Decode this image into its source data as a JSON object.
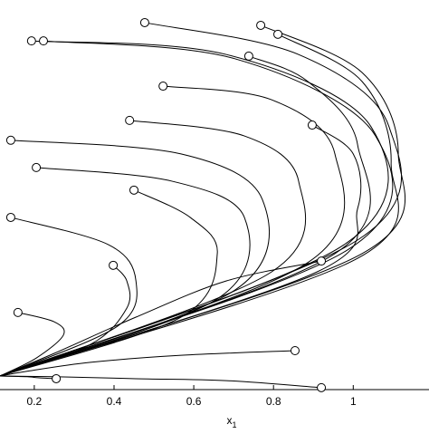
{
  "chart_data": {
    "type": "trajectories",
    "color": "#000000",
    "xlabel": {
      "text": "x",
      "subscript": "1"
    },
    "xlim": [
      0.114,
      1.19
    ],
    "ylim": [
      0,
      1
    ],
    "xticks": [
      0.2,
      0.4,
      0.6,
      0.8,
      1
    ],
    "series": [
      {
        "x": [
          0.193,
          0.682,
          1.045,
          0.977,
          0.114
        ],
        "y": [
          0.895,
          0.86,
          0.674,
          0.372,
          0.035
        ]
      },
      {
        "x": [
          0.223,
          0.704,
          1.056,
          0.988,
          0.114
        ],
        "y": [
          0.895,
          0.849,
          0.651,
          0.36,
          0.035
        ]
      },
      {
        "x": [
          0.477,
          0.863,
          1.09,
          1.011,
          0.114
        ],
        "y": [
          0.942,
          0.86,
          0.674,
          0.384,
          0.035
        ]
      },
      {
        "x": [
          0.768,
          1.022,
          1.113,
          1.022,
          0.114
        ],
        "y": [
          0.935,
          0.814,
          0.605,
          0.349,
          0.035
        ]
      },
      {
        "x": [
          0.811,
          1.022,
          1.095,
          1.011,
          0.114
        ],
        "y": [
          0.912,
          0.791,
          0.581,
          0.337,
          0.035
        ]
      },
      {
        "x": [
          0.738,
          0.886,
          1.011,
          0.954,
          0.114
        ],
        "y": [
          0.856,
          0.791,
          0.628,
          0.349,
          0.035
        ]
      },
      {
        "x": [
          0.523,
          0.795,
          0.954,
          0.886,
          0.114
        ],
        "y": [
          0.779,
          0.744,
          0.605,
          0.326,
          0.035
        ]
      },
      {
        "x": [
          0.439,
          0.727,
          0.863,
          0.795,
          0.114
        ],
        "y": [
          0.691,
          0.651,
          0.535,
          0.302,
          0.035
        ]
      },
      {
        "x": [
          0.141,
          0.568,
          0.772,
          0.704,
          0.114
        ],
        "y": [
          0.64,
          0.605,
          0.488,
          0.256,
          0.035
        ]
      },
      {
        "x": [
          0.205,
          0.545,
          0.727,
          0.659,
          0.114
        ],
        "y": [
          0.57,
          0.535,
          0.442,
          0.233,
          0.035
        ]
      },
      {
        "x": [
          0.45,
          0.591,
          0.659,
          0.568,
          0.114
        ],
        "y": [
          0.512,
          0.442,
          0.349,
          0.186,
          0.035
        ]
      },
      {
        "x": [
          0.141,
          0.386,
          0.455,
          0.409,
          0.114
        ],
        "y": [
          0.442,
          0.372,
          0.279,
          0.163,
          0.035
        ]
      },
      {
        "x": [
          0.398,
          0.432,
          0.432,
          0.341,
          0.114
        ],
        "y": [
          0.319,
          0.279,
          0.209,
          0.116,
          0.035
        ]
      },
      {
        "x": [
          0.159,
          0.25,
          0.273,
          0.205,
          0.114
        ],
        "y": [
          0.198,
          0.174,
          0.14,
          0.081,
          0.035
        ]
      },
      {
        "x": [
          0.92,
          0.682,
          0.455,
          0.25,
          0.114
        ],
        "y": [
          0.33,
          0.279,
          0.186,
          0.093,
          0.035
        ]
      },
      {
        "x": [
          0.854,
          0.568,
          0.341,
          0.182,
          0.114
        ],
        "y": [
          0.1,
          0.088,
          0.07,
          0.047,
          0.035
        ]
      },
      {
        "x": [
          0.92,
          0.682,
          0.455,
          0.25,
          0.114
        ],
        "y": [
          0.005,
          0.023,
          0.028,
          0.033,
          0.035
        ]
      },
      {
        "x": [
          0.255,
          0.216,
          0.182,
          0.148,
          0.114
        ],
        "y": [
          0.028,
          0.03,
          0.033,
          0.034,
          0.035
        ]
      },
      {
        "x": [
          0.897,
          1.0,
          1.011,
          0.909,
          0.114
        ],
        "y": [
          0.679,
          0.605,
          0.465,
          0.302,
          0.035
        ]
      }
    ]
  }
}
